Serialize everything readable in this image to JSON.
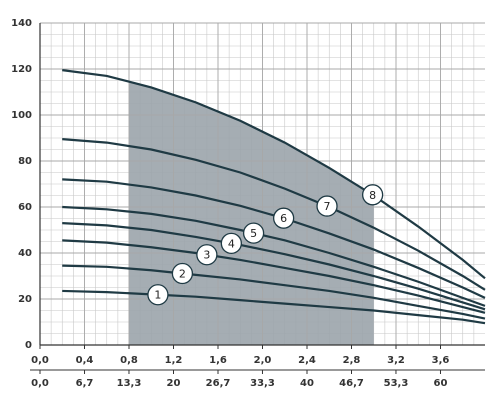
{
  "chart_data": {
    "type": "line",
    "x": [
      0.2,
      0.6,
      1.0,
      1.4,
      1.8,
      2.2,
      2.6,
      3.0,
      3.4,
      3.8,
      4.0
    ],
    "series": [
      {
        "name": "1",
        "color": "#1f3a44",
        "values": [
          23.5,
          23,
          22,
          21,
          19.5,
          18,
          16.5,
          15,
          13,
          11,
          9.5
        ]
      },
      {
        "name": "2",
        "color": "#1f3a44",
        "values": [
          34.5,
          34,
          32.5,
          30.5,
          28.5,
          26,
          23.5,
          20.5,
          17,
          13.5,
          11.5
        ]
      },
      {
        "name": "3",
        "color": "#1f3a44",
        "values": [
          45.5,
          44.5,
          42.5,
          40,
          37,
          33.5,
          30,
          26,
          21.5,
          16.5,
          14
        ]
      },
      {
        "name": "4",
        "color": "#1f3a44",
        "values": [
          53,
          52,
          50,
          47,
          43.5,
          39.5,
          35,
          30,
          24.5,
          18.5,
          15.5
        ]
      },
      {
        "name": "5",
        "color": "#1f3a44",
        "values": [
          60,
          59,
          57,
          54,
          50,
          45.5,
          40,
          34,
          27.5,
          20.5,
          17
        ]
      },
      {
        "name": "6",
        "color": "#1f3a44",
        "values": [
          72,
          71,
          68.5,
          65,
          60.5,
          55,
          48.5,
          41.5,
          33.5,
          25,
          20.5
        ]
      },
      {
        "name": "7",
        "color": "#1f3a44",
        "values": [
          89.5,
          88,
          85,
          80.5,
          75,
          68,
          60,
          51,
          41,
          30,
          24
        ]
      },
      {
        "name": "8",
        "color": "#1f3a44",
        "values": [
          119.5,
          117,
          112,
          105.5,
          97.5,
          88,
          77,
          65,
          51.5,
          37,
          29
        ]
      }
    ],
    "shaded_x": [
      0.8,
      3.0
    ],
    "shade_color": "#9ba4ab",
    "xlim": [
      0,
      4
    ],
    "ylim": [
      0,
      140
    ],
    "xticks": [
      {
        "value": 0,
        "label": "0,0"
      },
      {
        "value": 0.4,
        "label": "0,4"
      },
      {
        "value": 0.8,
        "label": "0,8"
      },
      {
        "value": 1.2,
        "label": "1,2"
      },
      {
        "value": 1.6,
        "label": "1,6"
      },
      {
        "value": 2.0,
        "label": "2,0"
      },
      {
        "value": 2.4,
        "label": "2,4"
      },
      {
        "value": 2.8,
        "label": "2,8"
      },
      {
        "value": 3.2,
        "label": "3,2"
      },
      {
        "value": 3.6,
        "label": "3,6"
      }
    ],
    "x2lim": [
      0,
      66.67
    ],
    "x2ticks": [
      {
        "value": 0,
        "label": "0,0"
      },
      {
        "value": 6.67,
        "label": "6,7"
      },
      {
        "value": 13.33,
        "label": "13,3"
      },
      20,
      {
        "value": 26.67,
        "label": "26,7"
      },
      {
        "value": 33.33,
        "label": "33,3"
      },
      40,
      {
        "value": 46.67,
        "label": "46,7"
      },
      {
        "value": 53.33,
        "label": "53,3"
      },
      60
    ],
    "yticks": [
      0,
      20,
      40,
      60,
      80,
      100,
      120,
      140
    ],
    "grid": true,
    "minor_grid": true
  }
}
